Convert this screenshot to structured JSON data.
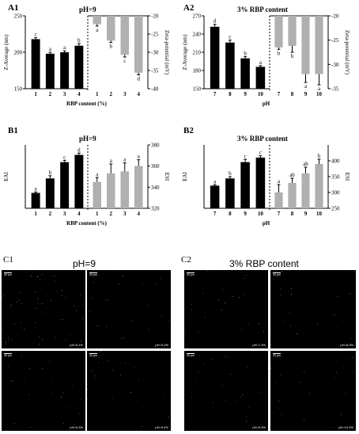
{
  "panel_labels": {
    "a1": "A1",
    "a2": "A2",
    "b1": "B1",
    "b2": "B2",
    "c1": "C1",
    "c2": "C2"
  },
  "colors": {
    "dark_bar": "#000000",
    "light_bar": "#b0b0b0",
    "micro_bg": "#000000",
    "dot_color": "#3a8a3a"
  },
  "chart_data": [
    {
      "id": "A1",
      "type": "bar",
      "title": "pH=9",
      "left": {
        "categories": [
          "1",
          "2",
          "3",
          "4"
        ],
        "values": [
          218,
          198,
          200,
          209
        ],
        "errors": [
          2,
          2,
          2,
          3
        ],
        "letters": [
          "c",
          "a",
          "a",
          "b"
        ],
        "ylim": [
          150,
          250
        ],
        "yticks": [
          "150",
          "200",
          "250"
        ],
        "ylabel": "Z-Average (nm)"
      },
      "right": {
        "categories": [
          "1",
          "2",
          "3",
          "4"
        ],
        "values": [
          -22.3,
          -26.8,
          -30.7,
          -35.6
        ],
        "errors": [
          0.5,
          0.5,
          0.6,
          0.6
        ],
        "letters": [
          "a",
          "b",
          "c",
          "d"
        ],
        "ylim": [
          -40,
          -20
        ],
        "yticks": [
          "-20",
          "-25",
          "-30",
          "-35",
          "-40"
        ],
        "ylabel": "Zeta-potential (mV)"
      },
      "xlabel": "RBP content (%)"
    },
    {
      "id": "A2",
      "type": "bar",
      "title": "3% RBP content",
      "left": {
        "categories": [
          "7",
          "8",
          "9",
          "10"
        ],
        "values": [
          252,
          226,
          200,
          186
        ],
        "errors": [
          4,
          4,
          3,
          2
        ],
        "letters": [
          "d",
          "c",
          "b",
          "a"
        ],
        "ylim": [
          150,
          270
        ],
        "yticks": [
          "150",
          "180",
          "210",
          "240",
          "270"
        ],
        "ylabel": "Z-Average (nm)"
      },
      "right": {
        "categories": [
          "7",
          "8",
          "9",
          "10"
        ],
        "values": [
          -26.5,
          -26.2,
          -32.0,
          -32.0
        ],
        "errors": [
          0.4,
          1.3,
          1.7,
          2.2
        ],
        "letters": [
          "b",
          "b",
          "a",
          "a"
        ],
        "ylim": [
          -35,
          -20
        ],
        "yticks": [
          "-20",
          "-25",
          "-30",
          "-35"
        ],
        "ylabel": "Zeta-potential (mV)"
      },
      "xlabel": "pH"
    },
    {
      "id": "B1",
      "type": "bar",
      "title": "pH=9",
      "left": {
        "categories": [
          "1",
          "2",
          "3",
          "4"
        ],
        "values": [
          28.5,
          36.5,
          45.5,
          49.5
        ],
        "errors": [
          0.5,
          1.5,
          1.0,
          1.0
        ],
        "letters": [
          "a",
          "b",
          "c",
          "d"
        ],
        "ylim": [
          20,
          55
        ],
        "yticks": [],
        "ylabel": "EAI"
      },
      "right": {
        "categories": [
          "1",
          "2",
          "3",
          "4"
        ],
        "values": [
          345,
          353,
          355,
          360
        ],
        "errors": [
          4,
          9,
          8,
          6
        ],
        "letters": [
          "a",
          "a",
          "a",
          "a"
        ],
        "ylim": [
          320,
          380
        ],
        "yticks": [
          "320",
          "340",
          "360",
          "380"
        ],
        "ylabel": "ESI"
      },
      "xlabel": "RBP content (%)"
    },
    {
      "id": "B2",
      "type": "bar",
      "title": "3% RBP content",
      "left": {
        "categories": [
          "7",
          "8",
          "9",
          "10"
        ],
        "values": [
          32.5,
          36.5,
          45.5,
          48.0
        ],
        "errors": [
          0.5,
          1.0,
          1.5,
          1.0
        ],
        "letters": [
          "a",
          "b",
          "c",
          "c"
        ],
        "ylim": [
          20,
          55
        ],
        "yticks": [],
        "ylabel": "EAI"
      },
      "right": {
        "categories": [
          "7",
          "8",
          "9",
          "10"
        ],
        "values": [
          300,
          330,
          360,
          390
        ],
        "errors": [
          25,
          15,
          20,
          15
        ],
        "letters": [
          "a",
          "ab",
          "ab",
          "b"
        ],
        "ylim": [
          250,
          450
        ],
        "yticks": [
          "250",
          "300",
          "350",
          "400"
        ],
        "ylabel": "ESI"
      },
      "xlabel": "pH"
    }
  ],
  "micrographs": {
    "c1_title": "pH=9",
    "c2_title": "3% RBP content",
    "scale_label": "30 μm",
    "c1_captions": [
      "pH=9,1%",
      "pH=9,2%",
      "pH=9,3%",
      "pH=9,4%"
    ],
    "c2_captions": [
      "pH=7,3%",
      "pH=8,3%",
      "pH=9,3%",
      "pH=10,3%"
    ]
  }
}
